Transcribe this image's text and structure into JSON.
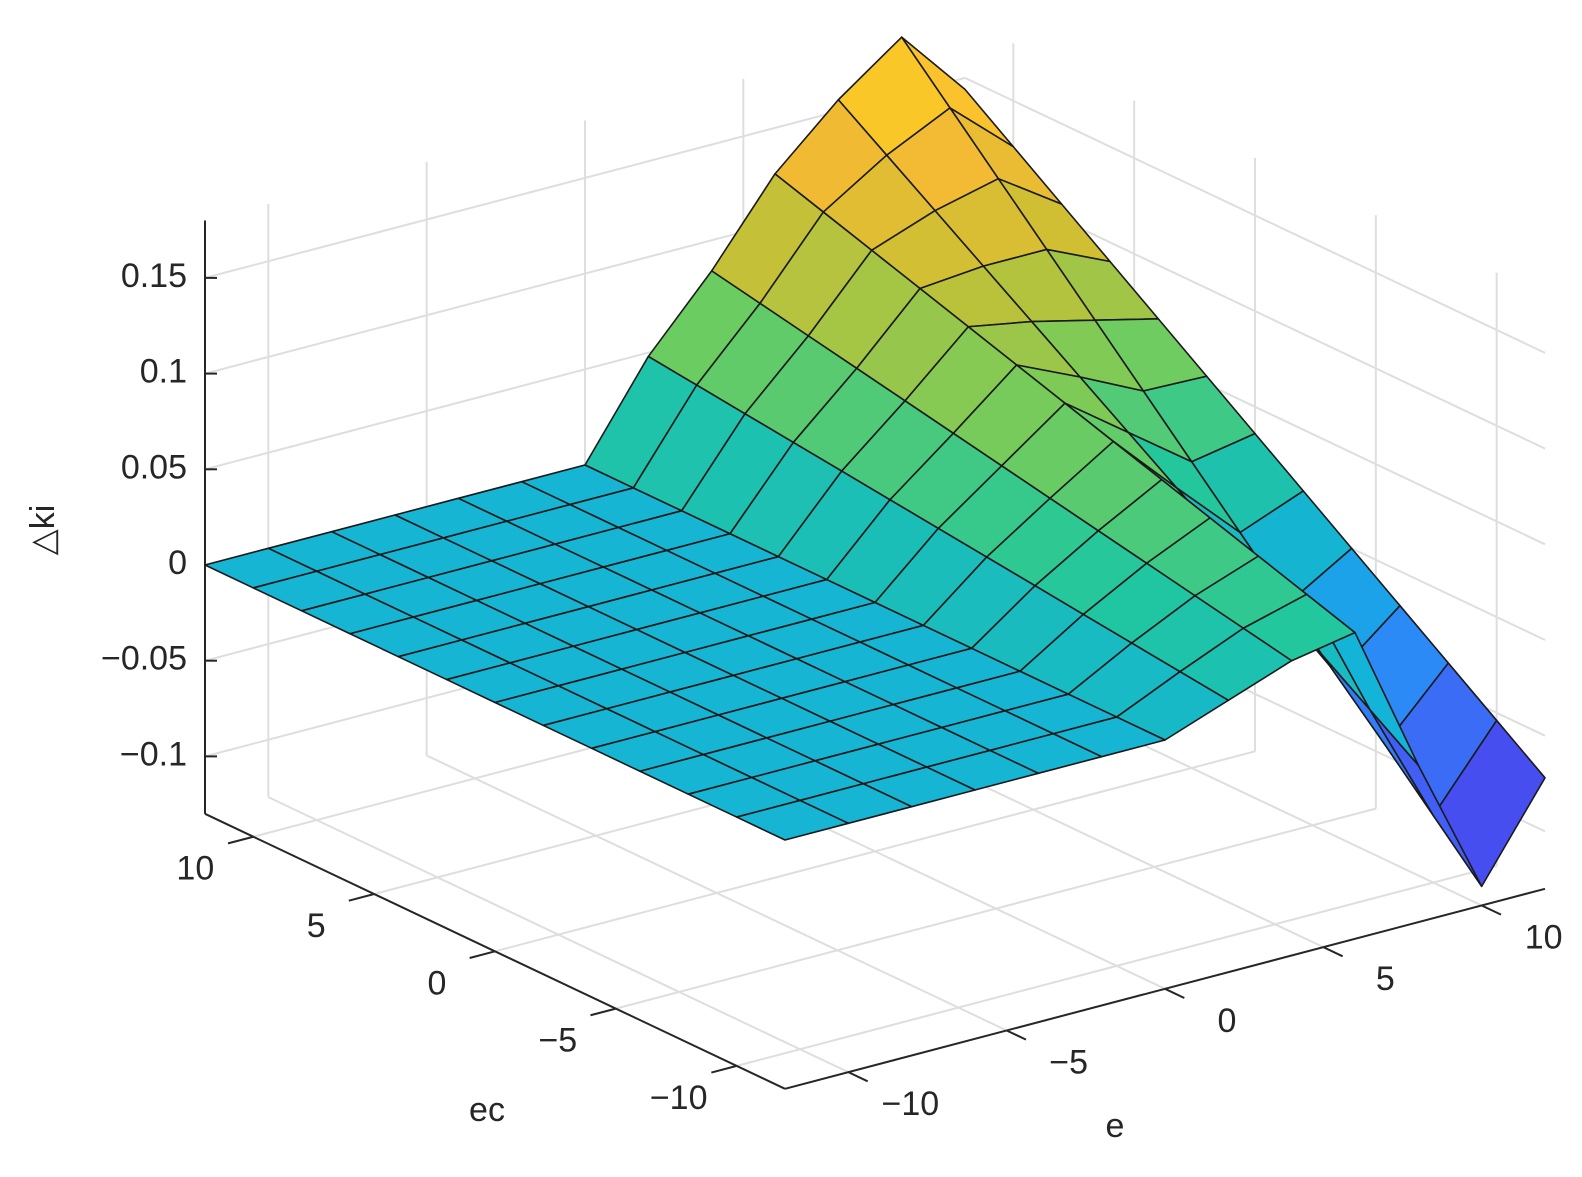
{
  "chart_data": {
    "type": "surface",
    "xlabel": "e",
    "ylabel": "ec",
    "zlabel": "△ki",
    "x": [
      -12,
      -10,
      -8,
      -6,
      -4,
      -2,
      0,
      2,
      4,
      6,
      8,
      10,
      12
    ],
    "y": [
      -12,
      -10,
      -8,
      -6,
      -4,
      -2,
      0,
      2,
      4,
      6,
      8,
      10,
      12
    ],
    "z": [
      [
        0,
        0,
        0,
        0,
        0,
        0,
        0,
        0.012,
        0.024,
        0.03,
        -0.048,
        -0.12,
        -0.072
      ],
      [
        0,
        0,
        0,
        0,
        0,
        0,
        0,
        0.015,
        0.029,
        0.038,
        -0.031,
        -0.095,
        -0.054
      ],
      [
        0,
        0,
        0,
        0,
        0,
        0,
        0,
        0.018,
        0.034,
        0.046,
        -0.014,
        -0.07,
        -0.036
      ],
      [
        0,
        0,
        0,
        0,
        0,
        0,
        0,
        0.021,
        0.039,
        0.054,
        0.003,
        -0.045,
        -0.018
      ],
      [
        0,
        0,
        0,
        0,
        0,
        0,
        0,
        0.024,
        0.044,
        0.062,
        0.02,
        -0.02,
        0
      ],
      [
        0,
        0,
        0,
        0,
        0,
        0,
        0,
        0.027,
        0.049,
        0.07,
        0.037,
        0.005,
        0.018
      ],
      [
        0,
        0,
        0,
        0,
        0,
        0,
        0,
        0.03,
        0.054,
        0.078,
        0.054,
        0.03,
        0.036
      ],
      [
        0,
        0,
        0,
        0,
        0,
        0,
        0,
        0.033,
        0.059,
        0.086,
        0.071,
        0.055,
        0.054
      ],
      [
        0,
        0,
        0,
        0,
        0,
        0,
        0,
        0.036,
        0.064,
        0.094,
        0.088,
        0.08,
        0.072
      ],
      [
        0,
        0,
        0,
        0,
        0,
        0,
        0,
        0.039,
        0.069,
        0.102,
        0.105,
        0.105,
        0.09
      ],
      [
        0,
        0,
        0,
        0,
        0,
        0,
        0,
        0.042,
        0.074,
        0.11,
        0.122,
        0.13,
        0.108
      ],
      [
        0,
        0,
        0,
        0,
        0,
        0,
        0,
        0.045,
        0.079,
        0.118,
        0.139,
        0.155,
        0.126
      ],
      [
        0,
        0,
        0,
        0,
        0,
        0,
        0,
        0.048,
        0.084,
        0.126,
        0.156,
        0.18,
        0.144
      ]
    ],
    "xlim": [
      -12,
      12
    ],
    "ylim": [
      -12,
      12
    ],
    "zlim": [
      -0.13,
      0.18
    ],
    "xticks": [
      {
        "value": -10,
        "label": "−10"
      },
      {
        "value": -5,
        "label": "−5"
      },
      0,
      5,
      10
    ],
    "yticks": [
      {
        "value": -10,
        "label": "−10"
      },
      {
        "value": -5,
        "label": "−5"
      },
      0,
      5,
      10
    ],
    "zticks": [
      {
        "value": -0.1,
        "label": "−0.1"
      },
      {
        "value": -0.05,
        "label": "−0.05"
      },
      0,
      0.05,
      0.1,
      0.15
    ],
    "grid": true,
    "colormap": "parula",
    "edgecolor": "#1a1a1a"
  }
}
